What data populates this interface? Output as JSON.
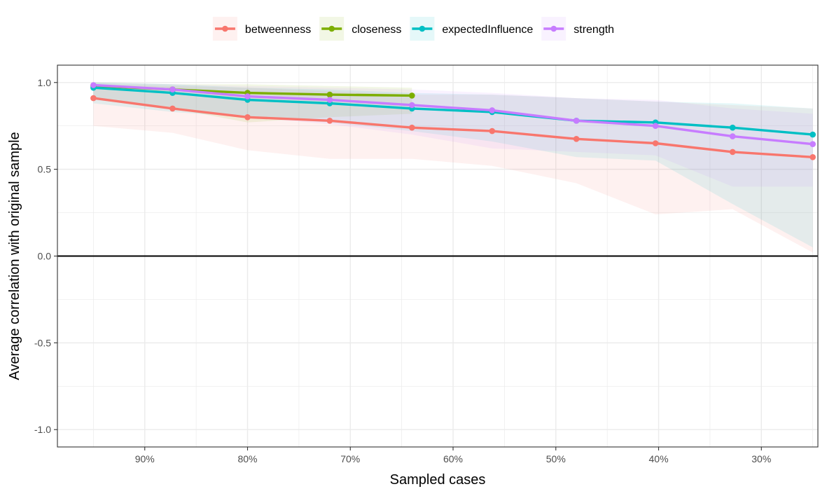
{
  "chart_data": {
    "type": "line",
    "xlabel": "Sampled cases",
    "ylabel": "Average correlation with original sample",
    "x_reversed": true,
    "xlim": [
      0.245,
      0.985
    ],
    "ylim": [
      -1.1,
      1.1
    ],
    "x_ticks": [
      {
        "value": 0.9,
        "label": "90%"
      },
      {
        "value": 0.8,
        "label": "80%"
      },
      {
        "value": 0.7,
        "label": "70%"
      },
      {
        "value": 0.6,
        "label": "60%"
      },
      {
        "value": 0.5,
        "label": "50%"
      },
      {
        "value": 0.4,
        "label": "40%"
      },
      {
        "value": 0.3,
        "label": "30%"
      }
    ],
    "y_ticks": [
      {
        "value": 1.0,
        "label": "1.0"
      },
      {
        "value": 0.5,
        "label": "0.5"
      },
      {
        "value": 0.0,
        "label": "0.0"
      },
      {
        "value": -0.5,
        "label": "-0.5"
      },
      {
        "value": -1.0,
        "label": "-1.0"
      }
    ],
    "grid": true,
    "reference_line_y": 0,
    "legend_position": "top",
    "series": [
      {
        "name": "betweenness",
        "color": "#F8766D",
        "x": [
          0.95,
          0.873,
          0.8,
          0.72,
          0.64,
          0.562,
          0.48,
          0.403,
          0.328,
          0.25
        ],
        "y": [
          0.91,
          0.85,
          0.8,
          0.78,
          0.74,
          0.72,
          0.675,
          0.65,
          0.6,
          0.57
        ],
        "ci_upper": [
          0.99,
          0.98,
          0.97,
          0.95,
          0.93,
          0.93,
          0.91,
          0.89,
          0.87,
          0.85
        ],
        "ci_lower": [
          0.75,
          0.71,
          0.61,
          0.56,
          0.56,
          0.52,
          0.42,
          0.24,
          0.27,
          0.02
        ]
      },
      {
        "name": "closeness",
        "color": "#7CAE00",
        "x": [
          0.95,
          0.873,
          0.8,
          0.72,
          0.64
        ],
        "y": [
          0.98,
          0.96,
          0.94,
          0.93,
          0.925
        ],
        "ci_upper": [
          1.0,
          0.99,
          0.99,
          0.98,
          0.97
        ],
        "ci_lower": [
          0.91,
          0.85,
          0.77,
          0.8,
          0.82
        ]
      },
      {
        "name": "expectedInfluence",
        "color": "#00BFC4",
        "x": [
          0.95,
          0.873,
          0.8,
          0.72,
          0.64,
          0.562,
          0.48,
          0.403,
          0.328,
          0.25
        ],
        "y": [
          0.97,
          0.94,
          0.9,
          0.88,
          0.85,
          0.83,
          0.78,
          0.77,
          0.74,
          0.7
        ],
        "ci_upper": [
          1.0,
          0.99,
          0.97,
          0.96,
          0.94,
          0.93,
          0.91,
          0.89,
          0.88,
          0.85
        ],
        "ci_lower": [
          0.88,
          0.83,
          0.8,
          0.77,
          0.72,
          0.66,
          0.57,
          0.55,
          0.3,
          0.05
        ]
      },
      {
        "name": "strength",
        "color": "#C77CFF",
        "x": [
          0.95,
          0.873,
          0.8,
          0.72,
          0.64,
          0.562,
          0.48,
          0.403,
          0.328,
          0.25
        ],
        "y": [
          0.985,
          0.96,
          0.92,
          0.9,
          0.87,
          0.84,
          0.78,
          0.75,
          0.69,
          0.645
        ],
        "ci_upper": [
          1.0,
          0.99,
          0.98,
          0.97,
          0.96,
          0.94,
          0.91,
          0.9,
          0.85,
          0.82
        ],
        "ci_lower": [
          0.9,
          0.86,
          0.8,
          0.76,
          0.7,
          0.62,
          0.6,
          0.58,
          0.4,
          0.4
        ]
      }
    ]
  }
}
